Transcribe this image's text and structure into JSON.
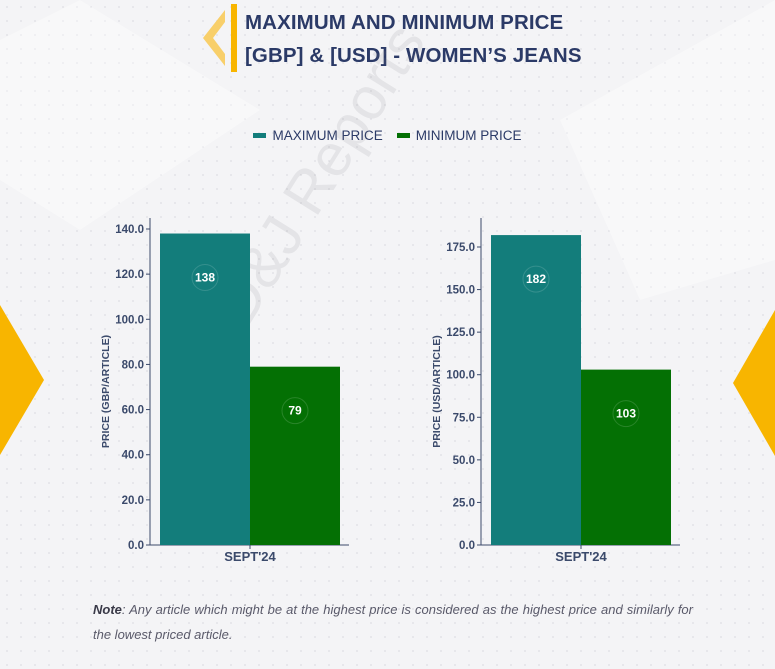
{
  "header": {
    "title_line1": "MAXIMUM AND MINIMUM PRICE",
    "title_line2": "[GBP] & [USD] - WOMEN’S JEANS"
  },
  "legend": {
    "max_label": "MAXIMUM PRICE",
    "min_label": "MINIMUM PRICE"
  },
  "colors": {
    "max": "#137d7b",
    "min": "#047004",
    "title": "#2b3a67",
    "accent": "#f8b500",
    "axis": "#3b4a6b"
  },
  "watermark_text": "D&J Reports",
  "note": {
    "label": "Note",
    "text": ": Any article which might be at the highest price is considered as the highest price and similarly for the lowest priced article."
  },
  "chart_data": [
    {
      "type": "bar",
      "categories": [
        "SEPT'24"
      ],
      "series": [
        {
          "name": "MAXIMUM PRICE",
          "values": [
            138
          ]
        },
        {
          "name": "MINIMUM PRICE",
          "values": [
            79
          ]
        }
      ],
      "ylabel": "PRICE (GBP/ARTICLE)",
      "ylim": [
        0,
        140
      ],
      "yticks": [
        "0.0",
        "20.0",
        "40.0",
        "60.0",
        "80.0",
        "100.0",
        "120.0",
        "140.0"
      ],
      "ytick_values": [
        0,
        20,
        40,
        60,
        80,
        100,
        120,
        140
      ],
      "data_labels": [
        "138",
        "79"
      ]
    },
    {
      "type": "bar",
      "categories": [
        "SEPT'24"
      ],
      "series": [
        {
          "name": "MAXIMUM PRICE",
          "values": [
            182
          ]
        },
        {
          "name": "MINIMUM PRICE",
          "values": [
            103
          ]
        }
      ],
      "ylabel": "PRICE (USD/ARTICLE)",
      "ylim": [
        0,
        185
      ],
      "yticks": [
        "0.0",
        "25.0",
        "50.0",
        "75.0",
        "100.0",
        "125.0",
        "150.0",
        "175.0"
      ],
      "ytick_values": [
        0,
        25,
        50,
        75,
        100,
        125,
        150,
        175
      ],
      "data_labels": [
        "182",
        "103"
      ]
    }
  ]
}
